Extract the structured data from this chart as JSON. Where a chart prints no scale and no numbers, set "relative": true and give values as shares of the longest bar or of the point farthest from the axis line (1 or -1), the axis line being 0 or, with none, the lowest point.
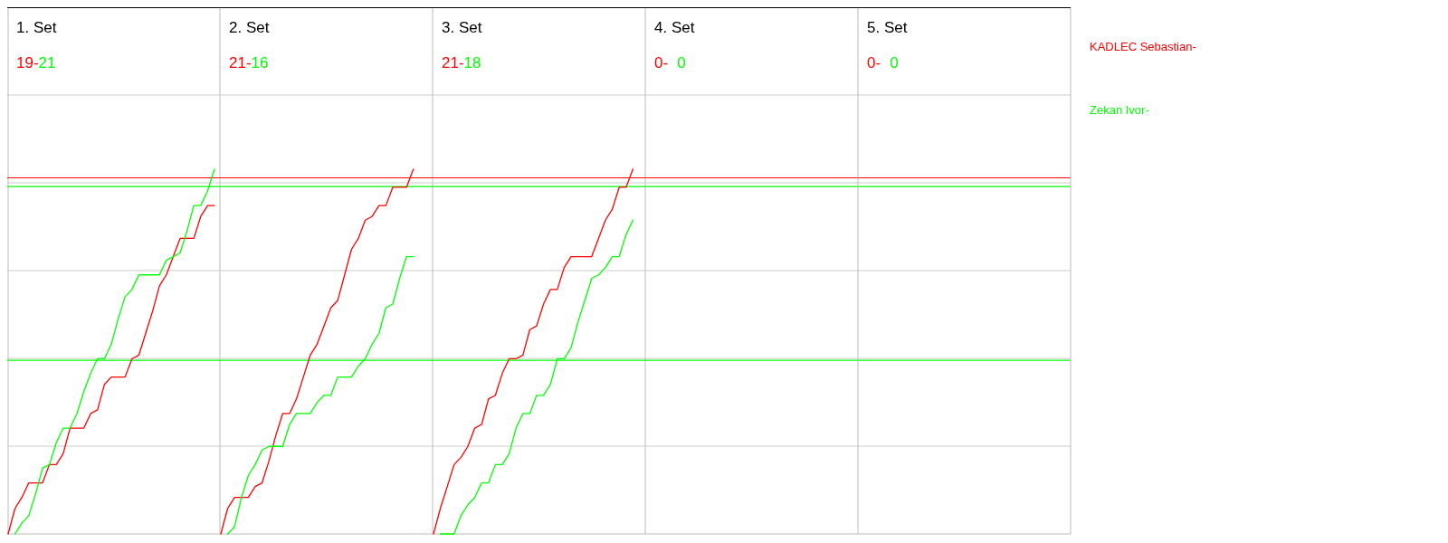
{
  "chart_data": [
    {
      "type": "line",
      "title": "1. Set",
      "annotations": [
        "19-",
        "21"
      ],
      "relative": true,
      "grid": true,
      "categories": [
        null,
        null,
        null,
        null,
        null,
        null,
        null,
        null,
        null,
        null,
        null,
        null,
        null,
        null,
        null,
        null,
        null,
        null,
        null,
        null,
        null,
        null,
        null,
        null,
        null,
        null,
        null,
        null,
        null,
        null,
        null
      ],
      "series": [
        {
          "color": "#ff0000",
          "values": [
            0,
            0.07,
            0.1,
            0.14,
            0.14,
            0.14,
            0.19,
            0.19,
            0.22,
            0.29,
            0.29,
            0.29,
            0.33,
            0.34,
            0.41,
            0.43,
            0.43,
            0.43,
            0.48,
            0.49,
            0.55,
            0.61,
            0.68,
            0.71,
            0.76,
            0.81,
            0.81,
            0.81,
            0.87,
            0.9,
            0.9
          ]
        },
        {
          "color": "#00ff00",
          "values": [
            null,
            0,
            0.03,
            0.05,
            0.11,
            0.18,
            0.19,
            0.25,
            0.29,
            0.29,
            0.33,
            0.39,
            0.44,
            0.48,
            0.48,
            0.52,
            0.59,
            0.65,
            0.67,
            0.71,
            0.71,
            0.71,
            0.71,
            0.75,
            0.76,
            0.77,
            0.83,
            0.9,
            0.9,
            0.94,
            1
          ]
        }
      ],
      "ref_lines": [
        {
          "axis": "y",
          "value": 0.976,
          "color": "#ff0000"
        },
        {
          "axis": "y",
          "value": 0.952,
          "color": "#00ff00"
        },
        {
          "axis": "y",
          "value": 0.476,
          "color": "#00ff00"
        }
      ]
    },
    {
      "type": "line",
      "title": "2. Set",
      "annotations": [
        "21-",
        "16"
      ],
      "relative": true,
      "grid": true,
      "categories": [
        null,
        null,
        null,
        null,
        null,
        null,
        null,
        null,
        null,
        null,
        null,
        null,
        null,
        null,
        null,
        null,
        null,
        null,
        null,
        null,
        null,
        null,
        null,
        null,
        null,
        null,
        null,
        null,
        null
      ],
      "series": [
        {
          "color": "#ff0000",
          "values": [
            0,
            0.07,
            0.1,
            0.1,
            0.1,
            0.13,
            0.14,
            0.2,
            0.27,
            0.33,
            0.33,
            0.37,
            0.43,
            0.49,
            0.52,
            0.57,
            0.62,
            0.64,
            0.71,
            0.78,
            0.81,
            0.86,
            0.87,
            0.9,
            0.9,
            0.95,
            0.95,
            0.95,
            1
          ]
        },
        {
          "color": "#00ff00",
          "values": [
            null,
            0,
            0.02,
            0.1,
            0.16,
            0.19,
            0.23,
            0.24,
            0.24,
            0.24,
            0.3,
            0.33,
            0.33,
            0.33,
            0.36,
            0.38,
            0.38,
            0.43,
            0.43,
            0.43,
            0.46,
            0.48,
            0.52,
            0.55,
            0.62,
            0.63,
            0.7,
            0.76,
            0.76
          ]
        }
      ],
      "ref_lines": [
        {
          "axis": "y",
          "value": 0.976,
          "color": "#ff0000"
        },
        {
          "axis": "y",
          "value": 0.952,
          "color": "#00ff00"
        },
        {
          "axis": "y",
          "value": 0.476,
          "color": "#00ff00"
        }
      ]
    },
    {
      "type": "line",
      "title": "3. Set",
      "annotations": [
        "21-",
        "18"
      ],
      "relative": true,
      "grid": true,
      "categories": [
        null,
        null,
        null,
        null,
        null,
        null,
        null,
        null,
        null,
        null,
        null,
        null,
        null,
        null,
        null,
        null,
        null,
        null,
        null,
        null,
        null,
        null,
        null,
        null,
        null,
        null,
        null,
        null,
        null,
        null
      ],
      "series": [
        {
          "name": "KADLEC Sebastian-",
          "color": "#ff0000",
          "values": [
            0,
            0.07,
            0.13,
            0.19,
            0.21,
            0.24,
            0.29,
            0.3,
            0.37,
            0.38,
            0.44,
            0.48,
            0.48,
            0.49,
            0.56,
            0.57,
            0.63,
            0.67,
            0.67,
            0.73,
            0.76,
            0.76,
            0.76,
            0.76,
            0.81,
            0.86,
            0.89,
            0.95,
            0.95,
            1
          ]
        },
        {
          "name": "Zekan Ivor-",
          "color": "#00ff00",
          "values": [
            null,
            0,
            0,
            0,
            0.05,
            0.08,
            0.1,
            0.14,
            0.14,
            0.19,
            0.19,
            0.22,
            0.29,
            0.33,
            0.33,
            0.38,
            0.38,
            0.41,
            0.48,
            0.48,
            0.51,
            0.58,
            0.64,
            0.7,
            0.71,
            0.73,
            0.76,
            0.76,
            0.82,
            0.86
          ]
        }
      ],
      "ref_lines": [
        {
          "axis": "y",
          "value": 0.976,
          "color": "#ff0000"
        },
        {
          "axis": "y",
          "value": 0.952,
          "color": "#00ff00"
        },
        {
          "axis": "y",
          "value": 0.476,
          "color": "#00ff00"
        }
      ]
    },
    {
      "type": "other",
      "title": "4. Set",
      "annotations": [
        "0-",
        "0"
      ]
    },
    {
      "type": "other",
      "title": "5. Set",
      "annotations": [
        "0-",
        "0"
      ]
    }
  ]
}
